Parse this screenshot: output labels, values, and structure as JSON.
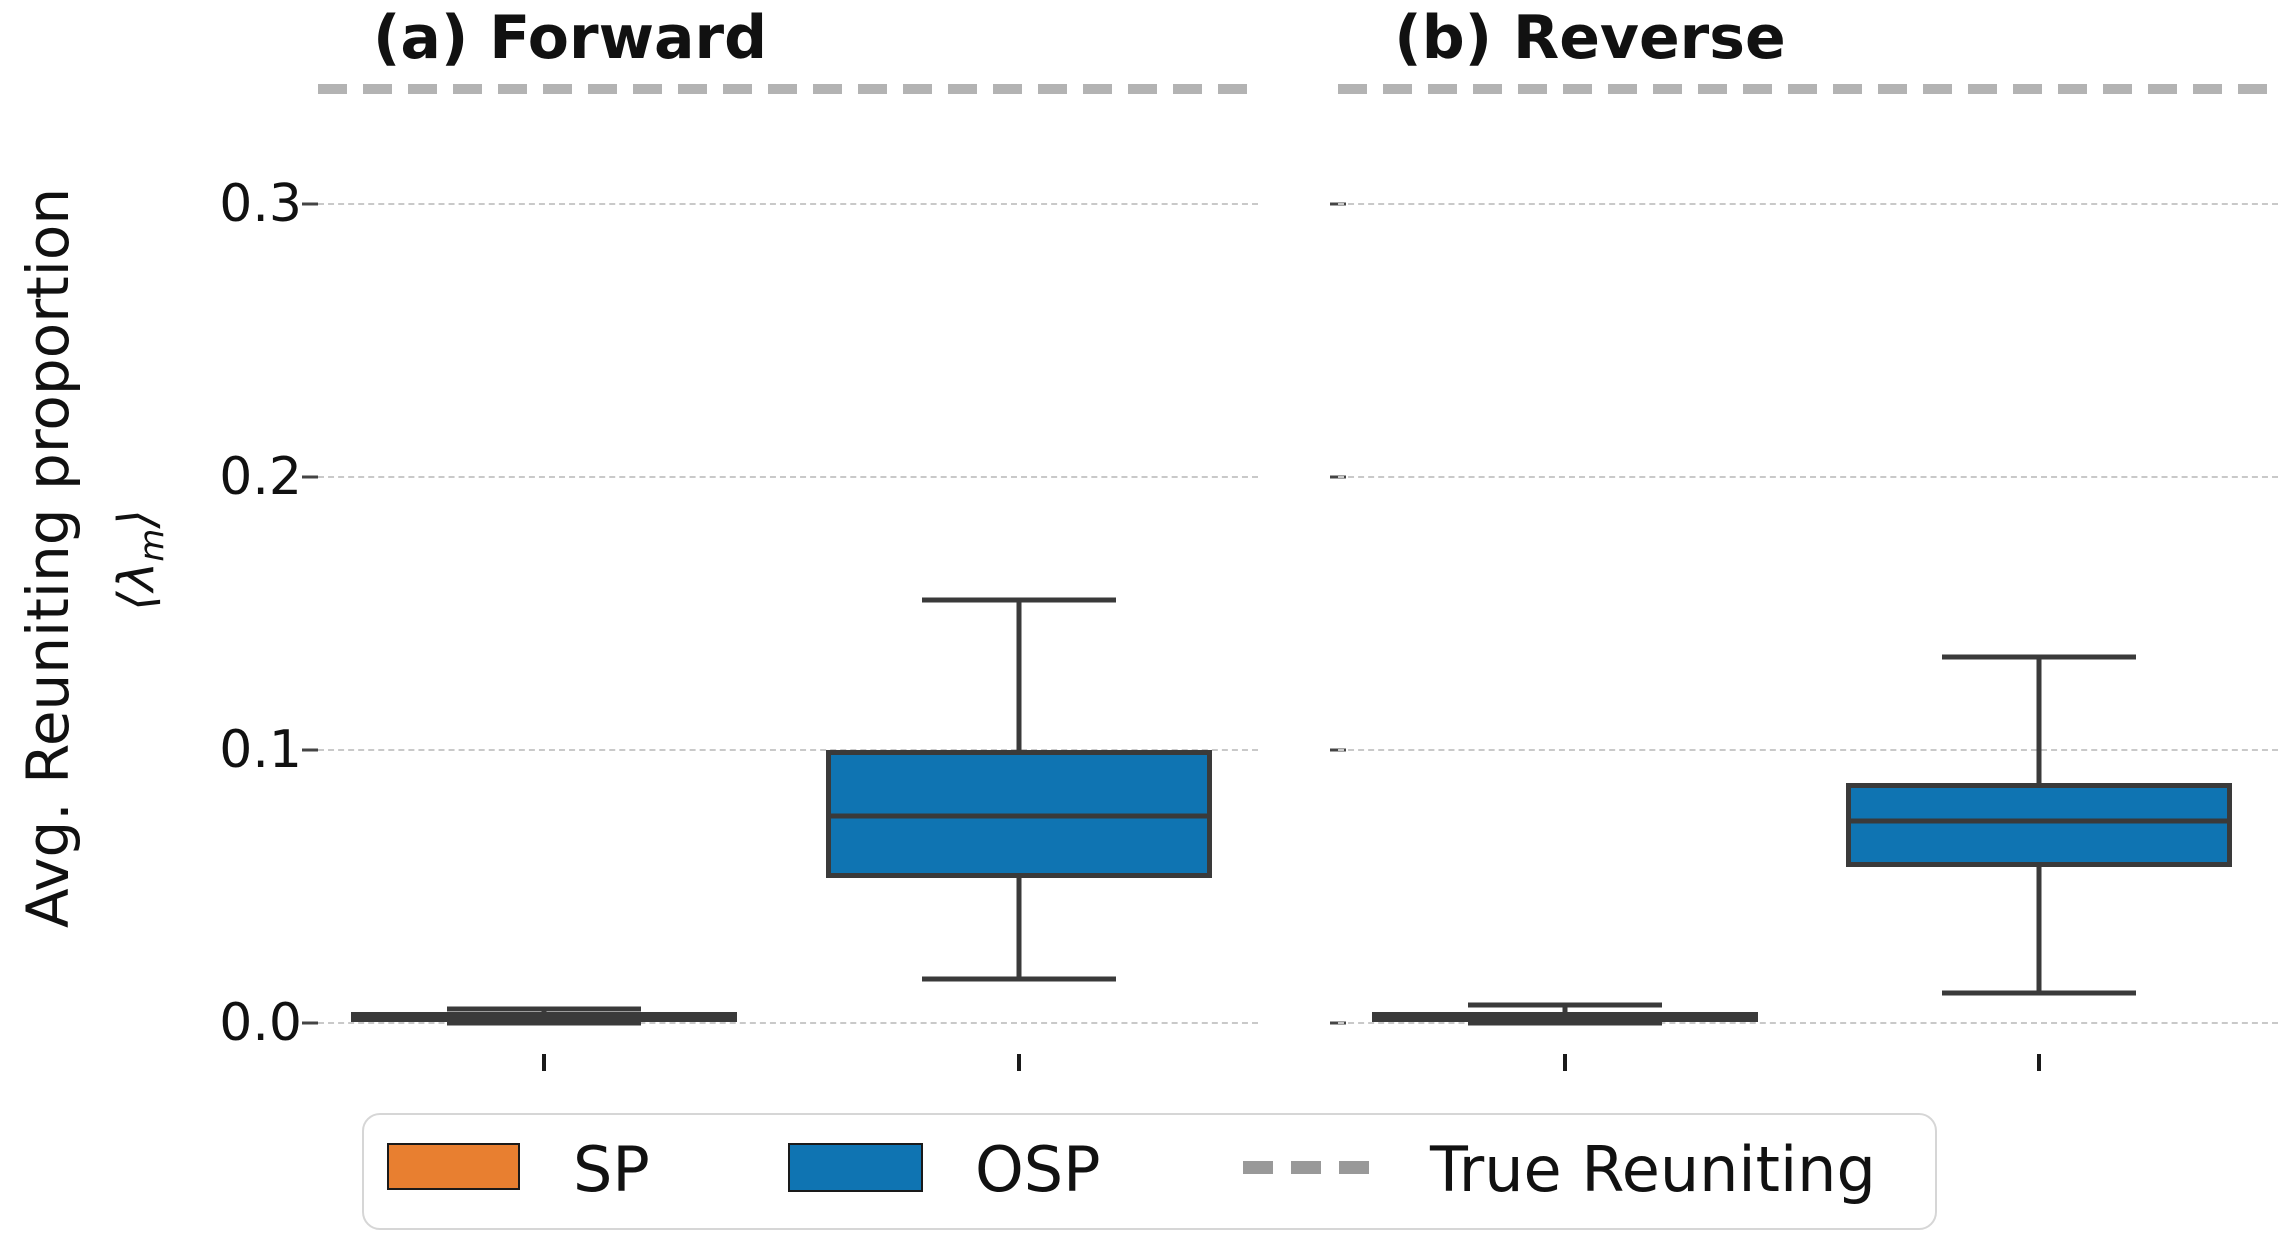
{
  "figure": {
    "ylabel": {
      "line1": "Avg. Reuniting proportion",
      "math_pre": "⟨λ",
      "math_sub": "m",
      "math_post": "⟩"
    },
    "colors": {
      "sp_fill": "#E87F30",
      "osp_fill": "#0F74B2",
      "box_edge": "#3A3A3A",
      "true_line": "#B3B3B3",
      "gridline": "#C9C9C9"
    }
  },
  "legend": {
    "sp_label": "SP",
    "osp_label": "OSP",
    "true_label": "True Reuniting"
  },
  "chart_data": {
    "type": "boxplot",
    "title": "",
    "xlabel": "",
    "ylabel": "Avg. Reuniting proportion ⟨λ_m⟩",
    "ylim": [
      -0.015,
      0.35
    ],
    "yticks": [
      0.0,
      0.1,
      0.2,
      0.3
    ],
    "ytick_labels": [
      "0.0",
      "0.1",
      "0.2",
      "0.3"
    ],
    "grid": "dashed horizontal",
    "legend_position": "bottom",
    "legend_entries": [
      "SP",
      "OSP",
      "True Reuniting"
    ],
    "true_reuniting_value": 0.342,
    "series_colors": {
      "SP": "#E87F30",
      "OSP": "#0F74B2"
    },
    "panels": [
      {
        "title": "(a) Forward",
        "boxes": [
          {
            "series": "SP",
            "whislo": 0.0,
            "q1": 0.001,
            "med": 0.0025,
            "q3": 0.004,
            "whishi": 0.005
          },
          {
            "series": "OSP",
            "whislo": 0.016,
            "q1": 0.053,
            "med": 0.076,
            "q3": 0.1,
            "whishi": 0.155
          }
        ]
      },
      {
        "title": "(b) Reverse",
        "boxes": [
          {
            "series": "SP",
            "whislo": 0.0,
            "q1": 0.001,
            "med": 0.003,
            "q3": 0.004,
            "whishi": 0.0065
          },
          {
            "series": "OSP",
            "whislo": 0.011,
            "q1": 0.057,
            "med": 0.074,
            "q3": 0.088,
            "whishi": 0.134
          }
        ]
      }
    ]
  }
}
